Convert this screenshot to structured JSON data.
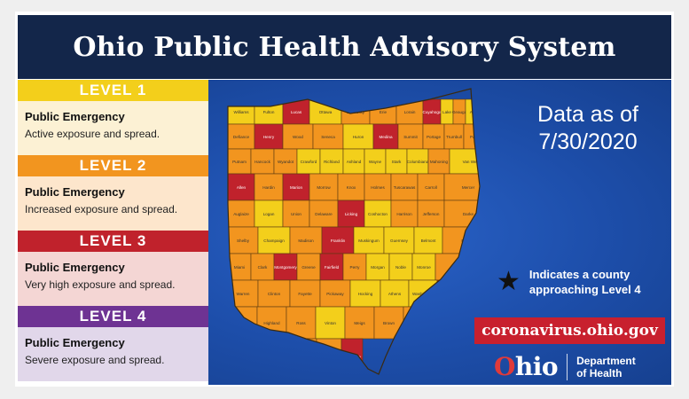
{
  "header": {
    "title": "Ohio Public Health Advisory System"
  },
  "legend": [
    {
      "level": "LEVEL 1",
      "heading": "Public Emergency",
      "desc": "Active exposure and spread.",
      "color": "#f3cf1b",
      "bg": "#fcf1d4"
    },
    {
      "level": "LEVEL 2",
      "heading": "Public Emergency",
      "desc": "Increased exposure and spread.",
      "color": "#f2951f",
      "bg": "#fde6cc"
    },
    {
      "level": "LEVEL 3",
      "heading": "Public Emergency",
      "desc": "Very high exposure and spread.",
      "color": "#c0222c",
      "bg": "#f4d6d4"
    },
    {
      "level": "LEVEL 4",
      "heading": "Public Emergency",
      "desc": "Severe exposure and spread.",
      "color": "#6e3393",
      "bg": "#e1d7ea"
    }
  ],
  "info": {
    "data_as_of_line1": "Data as of",
    "data_as_of_line2": "7/30/2020",
    "star_note": "Indicates a county approaching Level 4",
    "url": "coronavirus.ohio.gov"
  },
  "logo": {
    "o": "O",
    "rest": "hio",
    "dept_line1": "Department",
    "dept_line2": "of Health"
  },
  "colors": {
    "yellow": "#f3cf1b",
    "orange": "#f2951f",
    "red": "#c0222c",
    "purple": "#6e3393",
    "panel": "#1d4eaa",
    "titlebar": "#13264a"
  },
  "map": {
    "counties": [
      {
        "name": "Williams",
        "level": 1
      },
      {
        "name": "Fulton",
        "level": 1
      },
      {
        "name": "Lucas",
        "level": 3
      },
      {
        "name": "Ottawa",
        "level": 1
      },
      {
        "name": "Sandusky",
        "level": 2
      },
      {
        "name": "Erie",
        "level": 2
      },
      {
        "name": "Lorain",
        "level": 2
      },
      {
        "name": "Cuyahoga",
        "level": 3
      },
      {
        "name": "Lake",
        "level": 1
      },
      {
        "name": "Geauga",
        "level": 2
      },
      {
        "name": "Ashtabula",
        "level": 1
      },
      {
        "name": "Defiance",
        "level": 2
      },
      {
        "name": "Henry",
        "level": 3
      },
      {
        "name": "Wood",
        "level": 2
      },
      {
        "name": "Seneca",
        "level": 2
      },
      {
        "name": "Huron",
        "level": 1
      },
      {
        "name": "Medina",
        "level": 3
      },
      {
        "name": "Summit",
        "level": 2
      },
      {
        "name": "Portage",
        "level": 2
      },
      {
        "name": "Trumbull",
        "level": 2
      },
      {
        "name": "Paulding",
        "level": 2
      },
      {
        "name": "Putnam",
        "level": 2
      },
      {
        "name": "Hancock",
        "level": 2
      },
      {
        "name": "Wyandot",
        "level": 2
      },
      {
        "name": "Crawford",
        "level": 1
      },
      {
        "name": "Richland",
        "level": 1
      },
      {
        "name": "Ashland",
        "level": 1
      },
      {
        "name": "Wayne",
        "level": 1
      },
      {
        "name": "Stark",
        "level": 1
      },
      {
        "name": "Columbiana",
        "level": 1
      },
      {
        "name": "Mahoning",
        "level": 2
      },
      {
        "name": "Van Wert",
        "level": 1
      },
      {
        "name": "Allen",
        "level": 3
      },
      {
        "name": "Hardin",
        "level": 2
      },
      {
        "name": "Marion",
        "level": 3
      },
      {
        "name": "Morrow",
        "level": 2
      },
      {
        "name": "Knox",
        "level": 2
      },
      {
        "name": "Holmes",
        "level": 2
      },
      {
        "name": "Tuscarawas",
        "level": 2
      },
      {
        "name": "Carroll",
        "level": 2
      },
      {
        "name": "Mercer",
        "level": 2
      },
      {
        "name": "Auglaize",
        "level": 2
      },
      {
        "name": "Logan",
        "level": 1
      },
      {
        "name": "Union",
        "level": 2
      },
      {
        "name": "Delaware",
        "level": 2
      },
      {
        "name": "Licking",
        "level": 3
      },
      {
        "name": "Coshocton",
        "level": 1
      },
      {
        "name": "Harrison",
        "level": 2
      },
      {
        "name": "Jefferson",
        "level": 2
      },
      {
        "name": "Darke",
        "level": 2
      },
      {
        "name": "Shelby",
        "level": 2
      },
      {
        "name": "Champaign",
        "level": 1
      },
      {
        "name": "Madison",
        "level": 2
      },
      {
        "name": "Franklin",
        "level": 3
      },
      {
        "name": "Muskingum",
        "level": 1
      },
      {
        "name": "Guernsey",
        "level": 1
      },
      {
        "name": "Belmont",
        "level": 1
      },
      {
        "name": "Preble",
        "level": 2
      },
      {
        "name": "Miami",
        "level": 2
      },
      {
        "name": "Clark",
        "level": 2
      },
      {
        "name": "Montgomery",
        "level": 3
      },
      {
        "name": "Greene",
        "level": 2
      },
      {
        "name": "Fairfield",
        "level": 3
      },
      {
        "name": "Perry",
        "level": 2
      },
      {
        "name": "Morgan",
        "level": 1
      },
      {
        "name": "Noble",
        "level": 1
      },
      {
        "name": "Monroe",
        "level": 1
      },
      {
        "name": "Butler",
        "level": 2
      },
      {
        "name": "Warren",
        "level": 2
      },
      {
        "name": "Clinton",
        "level": 2
      },
      {
        "name": "Fayette",
        "level": 2
      },
      {
        "name": "Pickaway",
        "level": 2
      },
      {
        "name": "Hocking",
        "level": 1
      },
      {
        "name": "Athens",
        "level": 1
      },
      {
        "name": "Washington",
        "level": 1
      },
      {
        "name": "Hamilton",
        "level": 3
      },
      {
        "name": "Clermont",
        "level": 2
      },
      {
        "name": "Highland",
        "level": 2
      },
      {
        "name": "Ross",
        "level": 2
      },
      {
        "name": "Vinton",
        "level": 1
      },
      {
        "name": "Meigs",
        "level": 2
      },
      {
        "name": "Brown",
        "level": 2
      },
      {
        "name": "Adams",
        "level": 2
      },
      {
        "name": "Pike",
        "level": 1
      },
      {
        "name": "Jackson",
        "level": 1
      },
      {
        "name": "Gallia",
        "level": 2
      },
      {
        "name": "Scioto",
        "level": 2
      },
      {
        "name": "Lawrence",
        "level": 3
      }
    ]
  }
}
